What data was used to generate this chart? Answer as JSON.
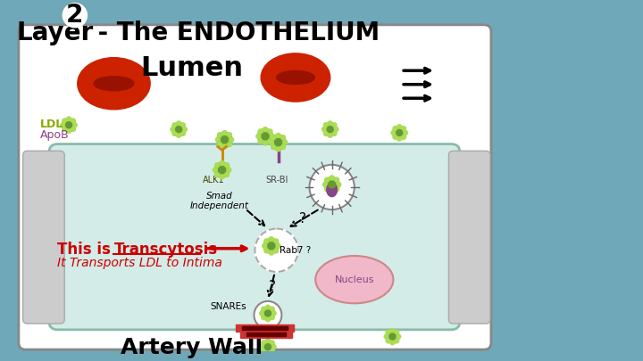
{
  "bg_color": "#6fa8b8",
  "title_text": "Layer",
  "title_num": "2",
  "title_suffix": " - The ENDOTHELIUM",
  "title_fontsize": 20,
  "lumen_text": "Lumen",
  "lumen_fontsize": 22,
  "artery_wall_text": "Artery Wall",
  "artery_wall_fontsize": 18,
  "transcytosis_text1": "This is ",
  "transcytosis_text2": "Transcytosis",
  "transcytosis_text3": "It Transports LDL to Intima",
  "transcytosis_color": "#cc0000",
  "ldl_text": "LDL",
  "apob_text": "ApoB",
  "alk1_text": "ALK1",
  "srbi_text": "SR-BI",
  "rab7_text": "Rab7 ?",
  "nucleus_text": "Nucleus",
  "snares_text": "SNAREs",
  "smad_text": "Smad\nIndependent",
  "q_mark": "?",
  "cell_bg": "#d4ece8",
  "cell_border": "#aaccbb",
  "nucleus_color": "#f0b8c8",
  "rbc_color": "#cc2200",
  "ldl_particle_color": "#88cc44",
  "white_circle_color": "#ffffff"
}
